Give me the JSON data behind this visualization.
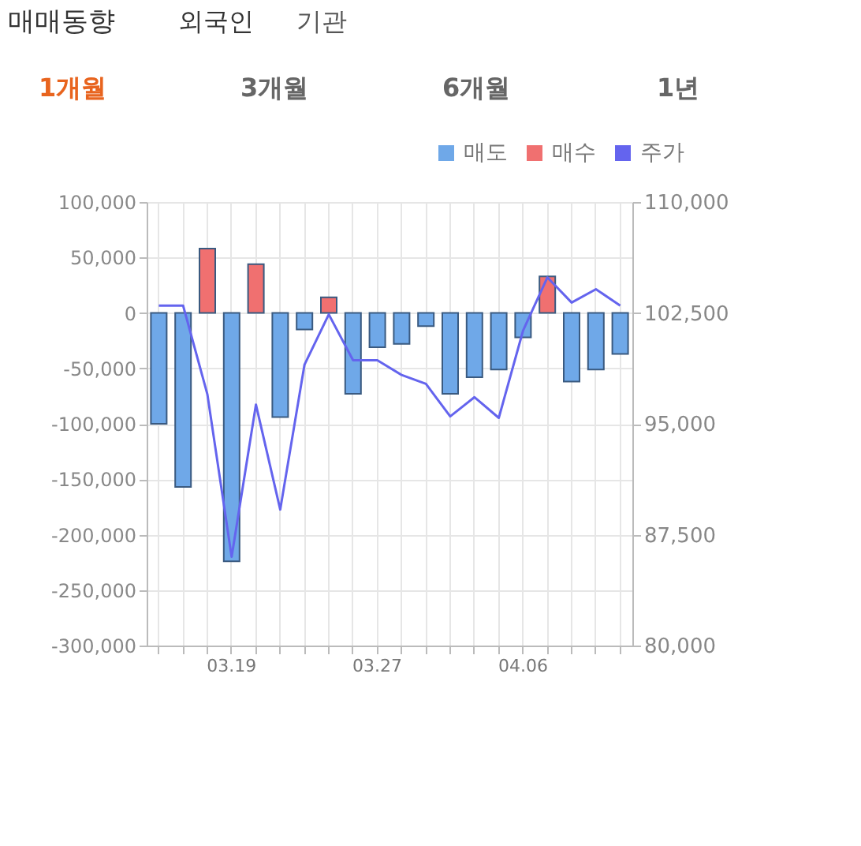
{
  "chart_data": {
    "type": "bar",
    "title": "매매동향",
    "annotations": [
      "외국인",
      "기관",
      "1개월",
      "3개월",
      "6개월",
      "1년"
    ],
    "categories": [
      null,
      null,
      null,
      "03.19",
      null,
      null,
      null,
      null,
      null,
      "03.27",
      null,
      null,
      null,
      null,
      null,
      "04.06",
      null,
      null,
      null,
      null
    ],
    "series": [
      {
        "name": "매도",
        "color": "#6fa8e8",
        "values": [
          -100000,
          -157000,
          null,
          -224000,
          null,
          -94000,
          -15000,
          null,
          -73000,
          -31000,
          -28000,
          -12000,
          -73000,
          -58000,
          -51000,
          -22000,
          null,
          -62000,
          -51000,
          -37000
        ]
      },
      {
        "name": "매수",
        "color": "#f07070",
        "values": [
          null,
          null,
          58000,
          null,
          44000,
          null,
          null,
          14000,
          null,
          null,
          null,
          null,
          null,
          null,
          null,
          null,
          33000,
          null,
          null,
          null
        ]
      },
      {
        "name": "주가",
        "type": "line",
        "axis": "y2",
        "color": "#6464ee",
        "values": [
          103000,
          103000,
          97000,
          86000,
          96300,
          89200,
          99000,
          102400,
          99300,
          99300,
          98300,
          97700,
          95500,
          96800,
          95400,
          101300,
          104900,
          103200,
          104100,
          103000
        ]
      }
    ],
    "ylim": [
      -300000,
      100000
    ],
    "yticks": [
      {
        "value": -300000,
        "label": "-300,000"
      },
      {
        "value": -250000,
        "label": "-250,000"
      },
      {
        "value": -200000,
        "label": "-200,000"
      },
      {
        "value": -150000,
        "label": "-150,000"
      },
      {
        "value": -100000,
        "label": "-100,000"
      },
      {
        "value": -50000,
        "label": "-50,000"
      },
      0,
      {
        "value": 50000,
        "label": "50,000"
      },
      {
        "value": 100000,
        "label": "100,000"
      }
    ],
    "y2lim": [
      80000,
      110000
    ],
    "y2ticks": [
      {
        "value": 80000,
        "label": "80,000"
      },
      {
        "value": 87500,
        "label": "87,500"
      },
      {
        "value": 95000,
        "label": "95,000"
      },
      {
        "value": 102500,
        "label": "102,500"
      },
      {
        "value": 110000,
        "label": "110,000"
      }
    ],
    "grid": true,
    "legend": "top right"
  }
}
